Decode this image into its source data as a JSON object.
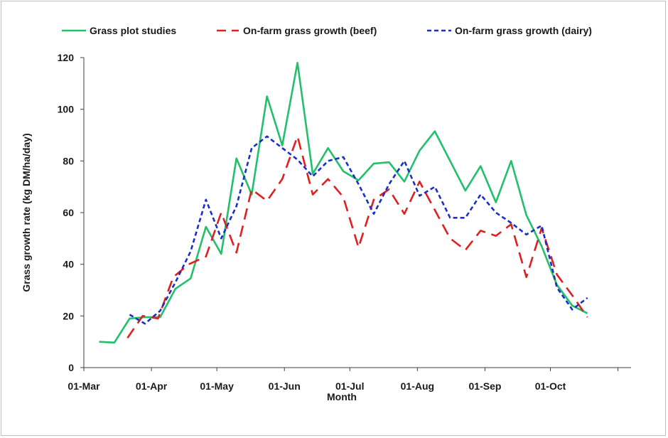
{
  "chart_data": {
    "type": "line",
    "title": "",
    "xlabel": "Month",
    "ylabel": "Grass growth rate (kg DM/ha/day)",
    "ylim": [
      0,
      120
    ],
    "yticks": [
      0,
      20,
      40,
      60,
      80,
      100,
      120
    ],
    "x_tick_labels": [
      "01-Mar",
      "01-Apr",
      "01-May",
      "01-Jun",
      "01-Jul",
      "01-Aug",
      "01-Sep",
      "01-Oct"
    ],
    "x_axis_range_days": [
      0,
      251
    ],
    "legend_position": "top",
    "grid": false,
    "series": [
      {
        "name": "Grass plot studies",
        "color": "#22c06a",
        "dash": "solid",
        "points": [
          [
            7,
            10
          ],
          [
            14,
            9.7
          ],
          [
            21,
            19
          ],
          [
            28,
            19.5
          ],
          [
            35,
            19.5
          ],
          [
            42,
            30.5
          ],
          [
            49,
            34.5
          ],
          [
            56,
            54.5
          ],
          [
            63,
            44
          ],
          [
            70,
            81
          ],
          [
            77,
            67
          ],
          [
            84,
            105
          ],
          [
            91,
            86
          ],
          [
            98,
            118
          ],
          [
            105,
            75
          ],
          [
            112,
            85
          ],
          [
            119,
            76
          ],
          [
            126,
            72.5
          ],
          [
            133,
            79
          ],
          [
            140,
            79.5
          ],
          [
            147,
            72
          ],
          [
            154,
            84
          ],
          [
            161,
            91.5
          ],
          [
            168,
            80
          ],
          [
            175,
            68.5
          ],
          [
            182,
            78
          ],
          [
            189,
            64
          ],
          [
            196,
            80
          ],
          [
            203,
            59
          ],
          [
            210,
            47
          ],
          [
            217,
            32
          ],
          [
            224,
            24
          ],
          [
            231,
            21
          ]
        ]
      },
      {
        "name": "On-farm grass growth (beef)",
        "color": "#e02020",
        "dash": "long-dash",
        "points": [
          [
            20,
            11.5
          ],
          [
            27,
            20
          ],
          [
            34,
            19
          ],
          [
            41,
            35
          ],
          [
            48,
            40
          ],
          [
            56,
            43
          ],
          [
            63,
            60
          ],
          [
            70,
            44.5
          ],
          [
            77,
            69
          ],
          [
            84,
            64.5
          ],
          [
            91,
            73
          ],
          [
            98,
            89.5
          ],
          [
            105,
            67
          ],
          [
            112,
            73
          ],
          [
            119,
            66
          ],
          [
            126,
            46.5
          ],
          [
            133,
            65
          ],
          [
            140,
            69
          ],
          [
            147,
            59.5
          ],
          [
            154,
            72
          ],
          [
            161,
            61
          ],
          [
            168,
            50
          ],
          [
            175,
            45.5
          ],
          [
            182,
            53
          ],
          [
            189,
            51
          ],
          [
            196,
            55.5
          ],
          [
            203,
            35
          ],
          [
            210,
            54
          ],
          [
            217,
            36
          ],
          [
            224,
            28
          ],
          [
            231,
            19.5
          ]
        ]
      },
      {
        "name": "On-farm grass growth (dairy)",
        "color": "#1a2fc8",
        "dash": "short-dash",
        "points": [
          [
            21,
            20.5
          ],
          [
            28,
            17
          ],
          [
            35,
            22
          ],
          [
            42,
            33
          ],
          [
            49,
            45
          ],
          [
            56,
            65
          ],
          [
            63,
            50
          ],
          [
            70,
            62.5
          ],
          [
            77,
            85
          ],
          [
            84,
            89.5
          ],
          [
            91,
            85
          ],
          [
            98,
            80.5
          ],
          [
            105,
            74
          ],
          [
            112,
            80
          ],
          [
            119,
            81.5
          ],
          [
            126,
            71
          ],
          [
            133,
            59.5
          ],
          [
            140,
            71
          ],
          [
            147,
            80
          ],
          [
            154,
            66.5
          ],
          [
            161,
            70
          ],
          [
            168,
            58
          ],
          [
            175,
            58
          ],
          [
            182,
            67
          ],
          [
            189,
            60
          ],
          [
            196,
            56
          ],
          [
            203,
            51.5
          ],
          [
            210,
            55
          ],
          [
            217,
            31
          ],
          [
            224,
            22.5
          ],
          [
            231,
            27
          ]
        ]
      }
    ]
  }
}
